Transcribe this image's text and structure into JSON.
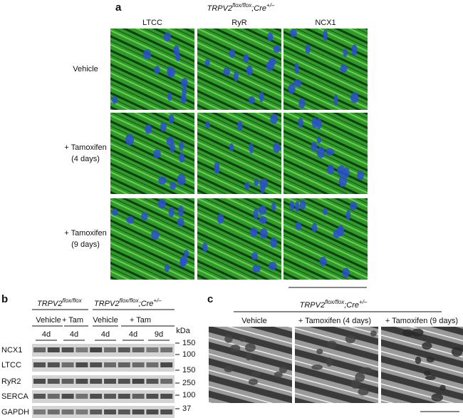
{
  "panel_a": {
    "label": "a",
    "title": {
      "gene": "TRPV2",
      "sup1": "flox/flox",
      "mid": ";Cre",
      "sup2": "+/–"
    },
    "columns": [
      "LTCC",
      "RyR",
      "NCX1"
    ],
    "rows": [
      [
        "Vehicle"
      ],
      [
        "+ Tamoxifen",
        "(4 days)"
      ],
      [
        "+ Tamoxifen",
        "(9 days)"
      ]
    ]
  },
  "panel_b": {
    "label": "b",
    "groups": [
      {
        "gene": "TRPV2",
        "sup1": "flox/flox"
      },
      {
        "gene": "TRPV2",
        "sup1": "flox/flox",
        "mid": ";Cre",
        "sup2": "+/–"
      }
    ],
    "treatments": [
      "Vehicle",
      "+ Tam",
      "Vehicle",
      "+ Tam"
    ],
    "durations": [
      "4d",
      "4d",
      "4d",
      "4d",
      "9d"
    ],
    "unit": "kDa",
    "proteins": [
      "NCX1",
      "LTCC",
      "RyR2",
      "SERCA",
      "GAPDH"
    ],
    "markers": [
      "150",
      "100",
      "150",
      "250",
      "100",
      "37"
    ]
  },
  "panel_c": {
    "label": "c",
    "title": {
      "gene": "TRPV2",
      "sup1": "flox/flox",
      "mid": ";Cre",
      "sup2": "+/–"
    },
    "columns": [
      "Vehicle",
      "+ Tamoxifen (4 days)",
      "+ Tamoxifen (9 days)"
    ]
  }
}
